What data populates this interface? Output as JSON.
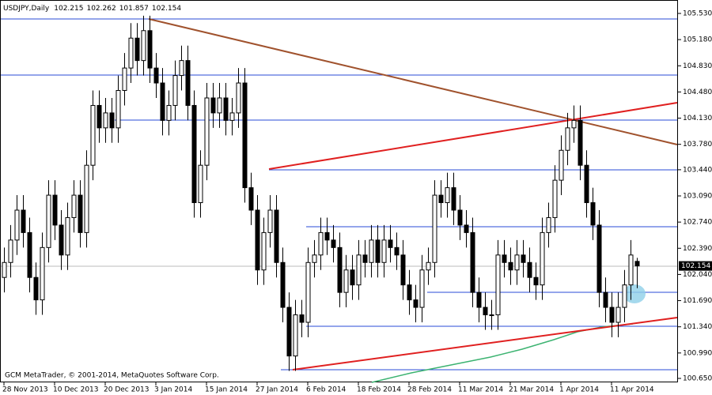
{
  "chart_data": {
    "type": "candlestick",
    "title": "USDJPY,Daily",
    "footer": "GCM MetaTrader, © 2001-2014, MetaQuotes Software Corp.",
    "categories": [
      "28 Nov 2013",
      null,
      null,
      null,
      null,
      null,
      null,
      null,
      "10 Dec 2013",
      null,
      null,
      null,
      null,
      null,
      null,
      null,
      "20 Dec 2013",
      null,
      null,
      null,
      null,
      null,
      null,
      null,
      "3 Jan 2014",
      null,
      null,
      null,
      null,
      null,
      null,
      null,
      "15 Jan 2014",
      null,
      null,
      null,
      null,
      null,
      null,
      null,
      "27 Jan 2014",
      null,
      null,
      null,
      null,
      null,
      null,
      null,
      "6 Feb 2014",
      null,
      null,
      null,
      null,
      null,
      null,
      null,
      "18 Feb 2014",
      null,
      null,
      null,
      null,
      null,
      null,
      null,
      "28 Feb 2014",
      null,
      null,
      null,
      null,
      null,
      null,
      null,
      "11 Mar 2014",
      null,
      null,
      null,
      null,
      null,
      null,
      null,
      "21 Mar 2014",
      null,
      null,
      null,
      null,
      null,
      null,
      null,
      "1 Apr 2014",
      null,
      null,
      null,
      null,
      null,
      null,
      null,
      "11 Apr 2014",
      null,
      null,
      null,
      null
    ],
    "open": [
      102.0,
      102.2,
      102.5,
      102.9,
      102.6,
      102.0,
      101.7,
      102.4,
      103.1,
      102.7,
      102.3,
      102.8,
      103.1,
      102.6,
      103.5,
      104.3,
      104.0,
      104.2,
      104.0,
      104.5,
      104.8,
      105.2,
      104.9,
      105.3,
      104.8,
      104.6,
      104.1,
      104.3,
      104.7,
      104.9,
      104.3,
      103.0,
      103.5,
      104.4,
      104.2,
      104.4,
      104.1,
      104.2,
      104.6,
      103.2,
      102.9,
      102.1,
      102.6,
      102.9,
      102.2,
      101.6,
      100.95,
      101.5,
      101.4,
      102.2,
      102.3,
      102.6,
      102.5,
      102.4,
      101.8,
      102.1,
      101.9,
      102.3,
      102.2,
      102.5,
      102.2,
      102.5,
      102.4,
      102.3,
      101.9,
      101.7,
      101.6,
      102.1,
      102.2,
      103.1,
      103.0,
      103.2,
      102.9,
      102.7,
      102.6,
      101.8,
      101.6,
      101.5,
      101.5,
      102.3,
      102.2,
      102.1,
      102.3,
      102.2,
      102.0,
      101.9,
      102.6,
      102.8,
      103.3,
      103.7,
      104.0,
      104.1,
      103.5,
      103.0,
      102.7,
      101.8,
      101.6,
      101.4,
      101.6,
      101.9,
      102.215
    ],
    "high": [
      102.4,
      102.7,
      103.1,
      103.1,
      102.8,
      102.2,
      102.6,
      103.3,
      103.3,
      102.9,
      103.0,
      103.3,
      103.3,
      103.7,
      104.5,
      104.5,
      104.4,
      104.4,
      104.7,
      105.0,
      105.4,
      105.4,
      105.5,
      105.5,
      105.0,
      104.8,
      104.5,
      104.9,
      105.1,
      105.1,
      104.5,
      103.7,
      104.6,
      104.6,
      104.6,
      104.6,
      104.4,
      104.8,
      104.8,
      103.4,
      103.1,
      102.8,
      103.1,
      103.1,
      102.4,
      101.8,
      101.7,
      101.7,
      102.4,
      102.5,
      102.8,
      102.8,
      102.7,
      102.6,
      102.3,
      102.3,
      102.5,
      102.5,
      102.7,
      102.7,
      102.7,
      102.7,
      102.6,
      102.5,
      102.1,
      101.9,
      102.3,
      102.4,
      103.3,
      103.3,
      103.4,
      103.4,
      103.1,
      102.9,
      102.8,
      102.0,
      101.8,
      101.7,
      102.5,
      102.5,
      102.4,
      102.5,
      102.5,
      102.4,
      102.2,
      102.8,
      103.0,
      103.5,
      103.9,
      104.2,
      104.3,
      104.3,
      103.7,
      103.2,
      102.9,
      102.0,
      101.8,
      101.8,
      102.1,
      102.5,
      102.262
    ],
    "low": [
      101.8,
      102.0,
      102.3,
      102.4,
      101.8,
      101.5,
      101.5,
      102.2,
      102.5,
      102.1,
      102.1,
      102.6,
      102.4,
      102.4,
      103.3,
      103.8,
      103.8,
      103.8,
      103.8,
      104.3,
      104.6,
      104.7,
      104.7,
      104.6,
      104.4,
      103.9,
      103.9,
      104.1,
      104.5,
      104.1,
      102.8,
      102.8,
      103.3,
      104.0,
      104.0,
      103.9,
      103.9,
      104.0,
      103.0,
      102.7,
      101.9,
      101.9,
      102.4,
      102.0,
      101.4,
      100.75,
      100.75,
      101.2,
      101.2,
      102.0,
      102.1,
      102.3,
      102.2,
      101.6,
      101.6,
      101.7,
      101.7,
      102.0,
      102.0,
      102.0,
      102.0,
      102.2,
      102.1,
      101.7,
      101.5,
      101.4,
      101.4,
      101.9,
      102.0,
      102.8,
      102.8,
      102.7,
      102.5,
      102.4,
      101.6,
      101.4,
      101.3,
      101.3,
      101.3,
      102.0,
      101.9,
      101.9,
      102.0,
      101.8,
      101.7,
      101.7,
      102.4,
      102.6,
      103.1,
      103.5,
      103.8,
      103.3,
      102.8,
      102.5,
      101.6,
      101.4,
      101.2,
      101.2,
      101.4,
      101.7,
      101.857
    ],
    "close": [
      102.2,
      102.5,
      102.9,
      102.6,
      102.0,
      101.7,
      102.4,
      103.1,
      102.7,
      102.3,
      102.8,
      103.1,
      102.6,
      103.5,
      104.3,
      104.0,
      104.2,
      104.0,
      104.5,
      104.8,
      105.2,
      104.9,
      105.3,
      104.8,
      104.6,
      104.1,
      104.3,
      104.7,
      104.9,
      104.3,
      103.0,
      103.5,
      104.4,
      104.2,
      104.4,
      104.1,
      104.2,
      104.6,
      103.2,
      102.9,
      102.1,
      102.6,
      102.9,
      102.2,
      101.6,
      100.95,
      101.5,
      101.4,
      102.2,
      102.3,
      102.6,
      102.5,
      102.4,
      101.8,
      102.1,
      101.9,
      102.3,
      102.2,
      102.5,
      102.2,
      102.5,
      102.4,
      102.3,
      101.9,
      101.7,
      101.6,
      102.1,
      102.2,
      103.1,
      103.0,
      103.2,
      102.9,
      102.7,
      102.6,
      101.8,
      101.6,
      101.5,
      101.5,
      102.3,
      102.2,
      102.1,
      102.3,
      102.2,
      102.0,
      101.9,
      102.6,
      102.8,
      103.3,
      103.7,
      104.0,
      104.1,
      103.5,
      103.0,
      102.7,
      101.8,
      101.6,
      101.4,
      101.6,
      101.9,
      102.3,
      102.154
    ],
    "ylim": [
      100.65,
      105.53
    ],
    "yticks": [
      {
        "value": 105.53,
        "label": "105.530"
      },
      {
        "value": 105.18,
        "label": "105.180"
      },
      {
        "value": 104.83,
        "label": "104.830"
      },
      {
        "value": 104.48,
        "label": "104.480"
      },
      {
        "value": 104.13,
        "label": "104.130"
      },
      {
        "value": 103.78,
        "label": "103.780"
      },
      {
        "value": 103.44,
        "label": "103.440"
      },
      {
        "value": 103.09,
        "label": "103.090"
      },
      {
        "value": 102.74,
        "label": "102.740"
      },
      {
        "value": 102.39,
        "label": "102.390"
      },
      {
        "value": 102.04,
        "label": "102.040"
      },
      {
        "value": 101.69,
        "label": "101.690"
      },
      {
        "value": 101.34,
        "label": "101.340"
      },
      {
        "value": 100.99,
        "label": "100.990"
      },
      {
        "value": 100.65,
        "label": "100.650"
      }
    ]
  }
}
